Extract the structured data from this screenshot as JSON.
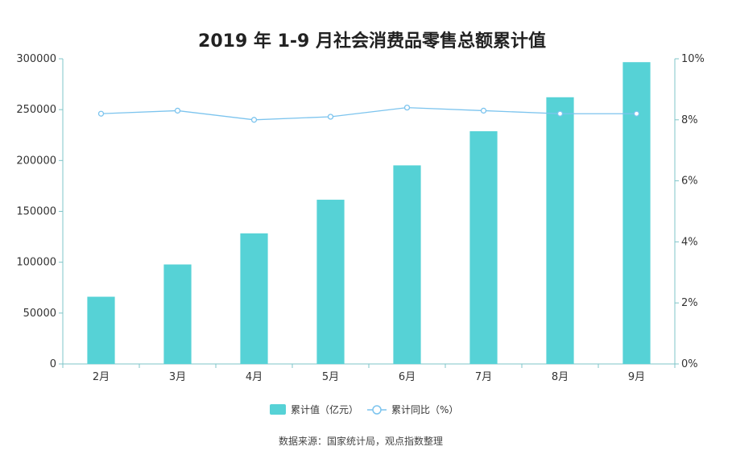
{
  "chart_data": {
    "type": "bar",
    "title": "2019 年 1-9 月社会消费品零售总额累计值",
    "categories": [
      "2月",
      "3月",
      "4月",
      "5月",
      "6月",
      "7月",
      "8月",
      "9月"
    ],
    "series": [
      {
        "name": "累计值（亿元）",
        "type": "bar",
        "axis": "left",
        "color": "#56d2d6",
        "values": [
          66064,
          97790,
          128388,
          161438,
          195210,
          228773,
          262179,
          296674
        ]
      },
      {
        "name": "累计同比（%）",
        "type": "line",
        "axis": "right",
        "color": "#7cc4ee",
        "values": [
          8.2,
          8.3,
          8.0,
          8.1,
          8.4,
          8.3,
          8.2,
          8.2
        ]
      }
    ],
    "y_left": {
      "ylim": [
        0,
        300000
      ],
      "ticks": [
        0,
        50000,
        100000,
        150000,
        200000,
        250000,
        300000
      ],
      "tick_labels": [
        "0",
        "50000",
        "100000",
        "150000",
        "200000",
        "250000",
        "300000"
      ]
    },
    "y_right": {
      "ylim": [
        0,
        10
      ],
      "ticks": [
        0,
        2,
        4,
        6,
        8,
        10
      ],
      "tick_labels": [
        "0%",
        "2%",
        "4%",
        "6%",
        "8%",
        "10%"
      ]
    },
    "grid": false,
    "legend_position": "bottom-center",
    "source": "数据来源：国家统计局，观点指数整理"
  }
}
